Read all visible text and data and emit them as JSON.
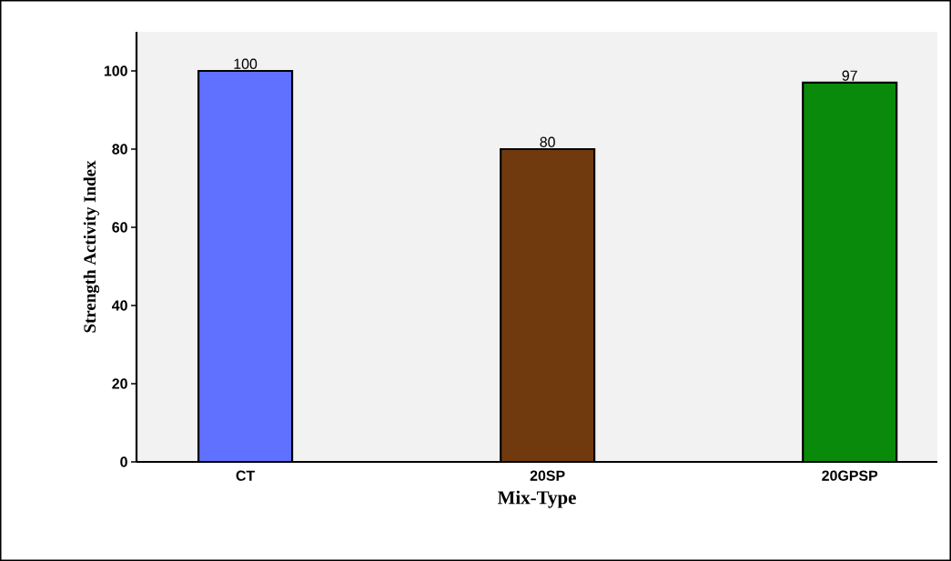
{
  "chart_data": {
    "type": "bar",
    "xlabel": "Mix-Type",
    "ylabel": "Strength Activity Index",
    "categories": [
      "CT",
      "20SP",
      "20GPSP"
    ],
    "values": [
      100,
      80,
      97
    ],
    "colors": [
      "#6070ff",
      "#703a0e",
      "#0a8a0a"
    ],
    "ylim": [
      0,
      110
    ],
    "yticks": [
      0,
      20,
      40,
      60,
      80,
      100
    ],
    "data_labels": true,
    "grid": false
  }
}
